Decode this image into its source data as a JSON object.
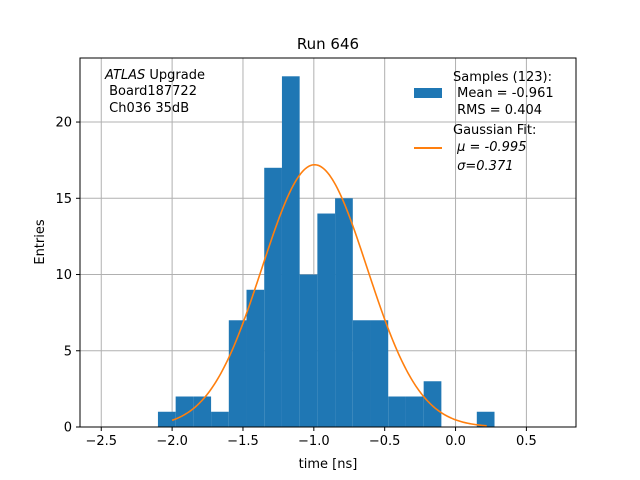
{
  "chart_data": {
    "type": "bar",
    "title": "Run 646",
    "xlabel": "time [ns]",
    "ylabel": "Entries",
    "xlim": [
      -2.65,
      0.85
    ],
    "ylim": [
      0,
      24.2
    ],
    "x_ticks": [
      -2.5,
      -2.0,
      -1.5,
      -1.0,
      -0.5,
      0.0,
      0.5
    ],
    "x_tick_labels": [
      "−2.5",
      "−2.0",
      "−1.5",
      "−1.0",
      "−0.5",
      "0.0",
      "0.5"
    ],
    "y_ticks": [
      0,
      5,
      10,
      15,
      20
    ],
    "y_tick_labels": [
      "0",
      "5",
      "10",
      "15",
      "20"
    ],
    "grid": true,
    "bin_edges": [
      -2.1,
      -1.975,
      -1.85,
      -1.725,
      -1.6,
      -1.475,
      -1.35,
      -1.225,
      -1.1,
      -0.975,
      -0.85,
      -0.725,
      -0.6,
      -0.475,
      -0.35,
      -0.225,
      -0.1,
      0.025,
      0.15,
      0.275,
      0.4
    ],
    "bin_counts": [
      1,
      2,
      2,
      1,
      7,
      9,
      17,
      23,
      10,
      14,
      15,
      7,
      7,
      2,
      2,
      3,
      0,
      0,
      1,
      0
    ],
    "bar_color": "#1f77b4",
    "fit": {
      "label": "Gaussian Fit:",
      "mu_line": "μ = -0.995",
      "sigma_line": "σ=0.371",
      "mu": -0.995,
      "sigma": 0.371,
      "amplitude": 17.2,
      "x_range": [
        -2.0,
        0.22
      ],
      "color": "#ff7f0e"
    },
    "legend": {
      "position": "top-right",
      "samples_line1": "Samples (123):",
      "samples_line2": " Mean = -0.961",
      "samples_line3": " RMS = 0.404",
      "fit_line1": "Gaussian Fit:",
      "fit_line2": " μ = -0.995",
      "fit_line3": " σ=0.371"
    },
    "annotation": {
      "italic": "ATLAS",
      "rest": " Upgrade",
      "line2": " Board187722",
      "line3": " Ch036 35dB"
    }
  }
}
